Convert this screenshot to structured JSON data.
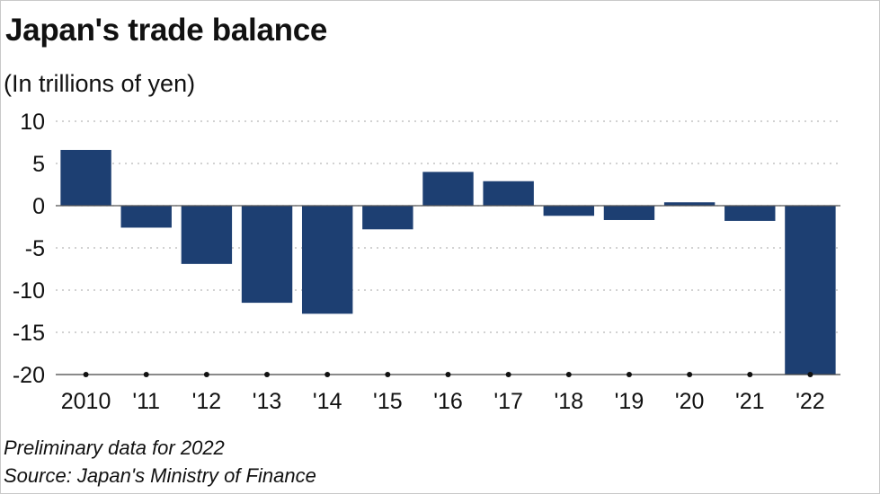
{
  "chart_data": {
    "type": "bar",
    "title": "Japan's trade balance",
    "subtitle": "(In trillions of yen)",
    "categories": [
      "2010",
      "'11",
      "'12",
      "'13",
      "'14",
      "'15",
      "'16",
      "'17",
      "'18",
      "'19",
      "'20",
      "'21",
      "'22"
    ],
    "values": [
      6.6,
      -2.6,
      -6.9,
      -11.5,
      -12.8,
      -2.8,
      4.0,
      2.9,
      -1.2,
      -1.7,
      0.4,
      -1.8,
      -20.0
    ],
    "yticks": [
      10,
      5,
      0,
      -5,
      -10,
      -15,
      -20
    ],
    "ylim": [
      -20,
      10
    ],
    "xlabel": "",
    "ylabel": "",
    "grid": true,
    "bar_color": "#1d3f72",
    "note": "Preliminary data for 2022",
    "source": "Source: Japan's Ministry of Finance"
  }
}
